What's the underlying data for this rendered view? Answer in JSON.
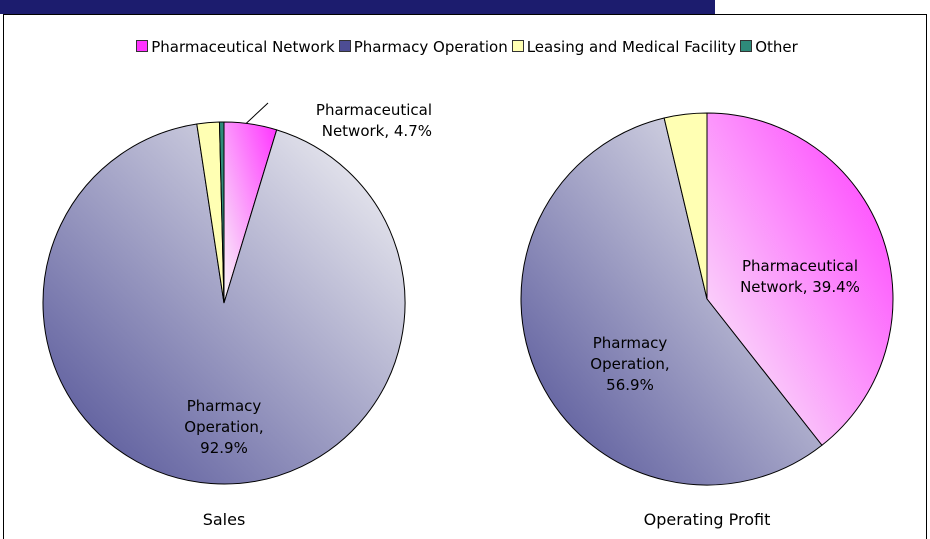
{
  "chart_data": [
    {
      "type": "pie",
      "title": "Sales",
      "categories": [
        "Pharmaceutical Network",
        "Pharmacy Operation",
        "Leasing and Medical Facility",
        "Other"
      ],
      "values": [
        4.7,
        92.9,
        2.0,
        0.4
      ],
      "value_labels": [
        "Pharmaceutical Network, 4.7%",
        "Pharmacy Operation, 92.9%",
        null,
        null
      ],
      "colors": [
        "#ff33ff",
        "#4d4d94",
        "#ffffb3",
        "#2e8b7a"
      ]
    },
    {
      "type": "pie",
      "title": "Operating Profit",
      "categories": [
        "Pharmaceutical Network",
        "Pharmacy Operation",
        "Leasing and Medical Facility",
        "Other"
      ],
      "values": [
        39.4,
        56.9,
        3.7,
        0
      ],
      "value_labels": [
        "Pharmaceutical Network, 39.4%",
        "Pharmacy Operation, 56.9%",
        null,
        null
      ],
      "colors": [
        "#ff33ff",
        "#4d4d94",
        "#ffffb3",
        "#2e8b7a"
      ]
    }
  ]
}
